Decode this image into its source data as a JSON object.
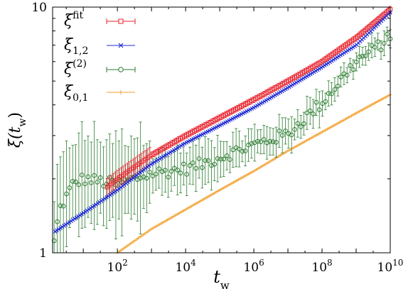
{
  "chart_data": {
    "type": "scatter",
    "title": "",
    "xlabel": {
      "base": "t",
      "sub": "w"
    },
    "ylabel": {
      "base": "ξ(t",
      "sub": "w",
      "tail": ")"
    },
    "xscale": "log",
    "yscale": "log",
    "xlim": [
      1.26,
      10000000000.0
    ],
    "ylim": [
      1,
      10
    ],
    "grid": false,
    "legend_position": "top-left",
    "x_ticks": [
      {
        "value": 100,
        "base": "10",
        "exp": "2"
      },
      {
        "value": 10000,
        "base": "10",
        "exp": "4"
      },
      {
        "value": 1000000,
        "base": "10",
        "exp": "6"
      },
      {
        "value": 100000000,
        "base": "10",
        "exp": "8"
      },
      {
        "value": 10000000000,
        "base": "10",
        "exp": "10"
      }
    ],
    "y_ticks": [
      {
        "value": 1,
        "label": "1"
      },
      {
        "value": 10,
        "label": "10"
      }
    ],
    "series": [
      {
        "name": "ξ^fit",
        "label_base": "ξ",
        "label_sup": "fit",
        "label_sub": "",
        "color": "#e8202a",
        "marker": "square",
        "errorbars": true,
        "x_range": [
          50,
          10000000000.0
        ],
        "points": 140,
        "y_anchors": [
          [
            50,
            1.85
          ],
          [
            100,
            2.0
          ],
          [
            1000,
            2.5
          ],
          [
            10000,
            3.0
          ],
          [
            100000,
            3.55
          ],
          [
            1000000,
            4.2
          ],
          [
            10000000,
            5.0
          ],
          [
            100000000,
            6.0
          ],
          [
            1000000000,
            7.5
          ],
          [
            10000000000,
            9.8
          ]
        ]
      },
      {
        "name": "ξ_1,2",
        "label_base": "ξ",
        "label_sup": "",
        "label_sub": "1,2",
        "color": "#1f2bd6",
        "marker": "x",
        "errorbars": false,
        "x_range": [
          1.5,
          10000000000.0
        ],
        "points": 190,
        "y_anchors": [
          [
            1.5,
            1.22
          ],
          [
            3,
            1.3
          ],
          [
            10,
            1.45
          ],
          [
            100,
            1.8
          ],
          [
            1000,
            2.3
          ],
          [
            10000,
            2.8
          ],
          [
            100000,
            3.3
          ],
          [
            1000000,
            3.9
          ],
          [
            10000000,
            4.7
          ],
          [
            100000000,
            5.7
          ],
          [
            1000000000,
            7.0
          ],
          [
            10000000000,
            9.5
          ]
        ]
      },
      {
        "name": "ξ^(2)",
        "label_base": "ξ",
        "label_sup": "(2)",
        "label_sub": "",
        "color": "#2e7d32",
        "marker": "circle",
        "errorbars": true,
        "x_range": [
          1.4,
          10000000000.0
        ],
        "points": 110,
        "y_anchors": [
          [
            1.4,
            1.1
          ],
          [
            2,
            1.5
          ],
          [
            5,
            1.9
          ],
          [
            10,
            2.0
          ],
          [
            100,
            1.9
          ],
          [
            1000,
            2.1
          ],
          [
            10000,
            2.2
          ],
          [
            30000,
            2.3
          ],
          [
            100000,
            2.45
          ],
          [
            1000000,
            2.75
          ],
          [
            10000000,
            3.05
          ],
          [
            100000000,
            4.1
          ],
          [
            1000000000,
            6.0
          ],
          [
            10000000000,
            7.5
          ]
        ]
      },
      {
        "name": "ξ_0,1",
        "label_base": "ξ",
        "label_sup": "",
        "label_sub": "0,1",
        "color": "#f2a12e",
        "marker": "plus",
        "errorbars": false,
        "x_range": [
          100,
          10000000000.0
        ],
        "points": 170,
        "y_anchors": [
          [
            100,
            1.0
          ],
          [
            1000,
            1.25
          ],
          [
            10000,
            1.5
          ],
          [
            100000,
            1.8
          ],
          [
            1000000,
            2.15
          ],
          [
            10000000,
            2.6
          ],
          [
            100000000,
            3.1
          ],
          [
            1000000000,
            3.7
          ],
          [
            10000000000,
            4.4
          ]
        ]
      }
    ]
  }
}
